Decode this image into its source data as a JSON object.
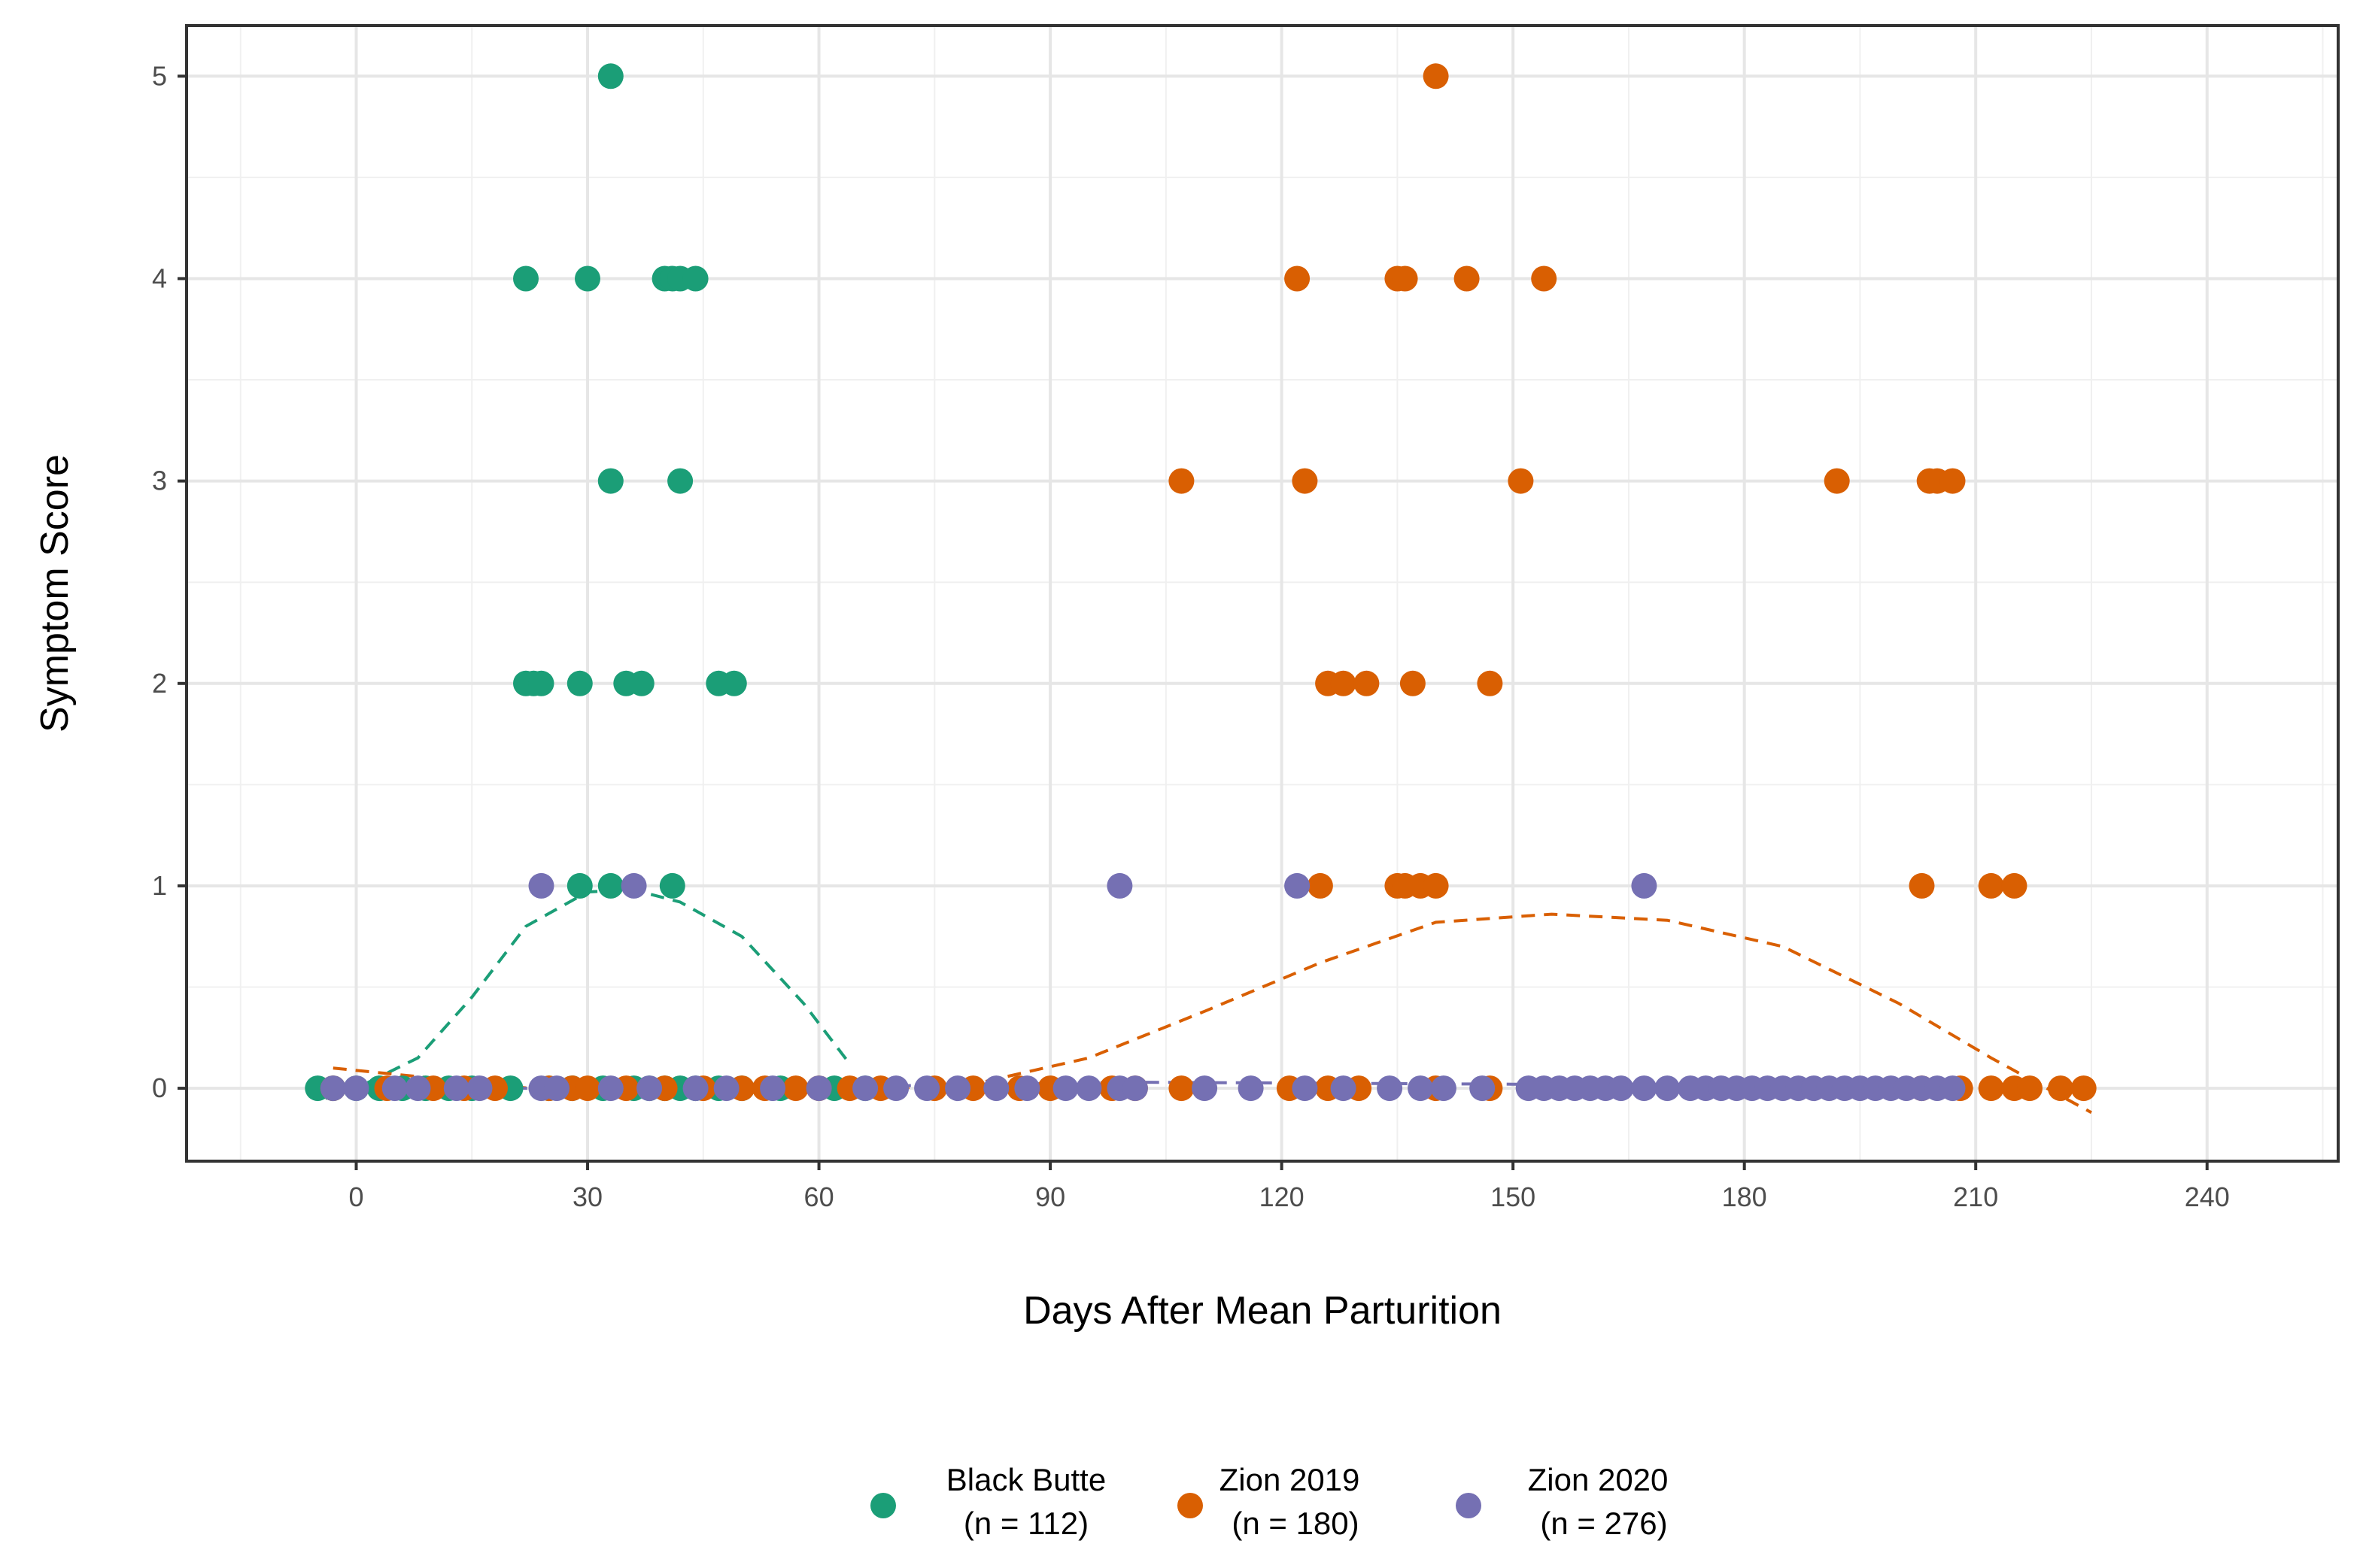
{
  "chart_data": {
    "type": "scatter",
    "title": "",
    "xlabel": "Days After Mean Parturition",
    "ylabel": "Symptom Score",
    "xlim": [
      -22,
      257
    ],
    "ylim": [
      -0.36,
      5.25
    ],
    "x_major_ticks": [
      0,
      30,
      60,
      90,
      120,
      150,
      180,
      210,
      240
    ],
    "x_tick_labels": [
      "0",
      "30",
      "60",
      "90",
      "120",
      "150",
      "180",
      "210",
      "240"
    ],
    "y_major_ticks": [
      0,
      1,
      2,
      3,
      4,
      5
    ],
    "y_tick_labels": [
      "0",
      "1",
      "2",
      "3",
      "4",
      "5"
    ],
    "x_minor_grid": [
      -15,
      15,
      45,
      75,
      105,
      135,
      165,
      195,
      225,
      255
    ],
    "y_minor_grid": [
      0.5,
      1.5,
      2.5,
      3.5,
      4.5
    ],
    "legend_position": "bottom",
    "series": [
      {
        "name": "Black Butte (n = 112)",
        "legend_line1": "Black Butte",
        "legend_line2": "(n = 112)",
        "color": "#1b9e77",
        "points": [
          [
            33,
            5
          ],
          [
            22,
            4
          ],
          [
            30,
            4
          ],
          [
            40,
            4
          ],
          [
            41,
            4
          ],
          [
            42,
            4
          ],
          [
            44,
            4
          ],
          [
            33,
            3
          ],
          [
            42,
            3
          ],
          [
            22,
            2
          ],
          [
            23,
            2
          ],
          [
            24,
            2
          ],
          [
            29,
            2
          ],
          [
            35,
            2
          ],
          [
            37,
            2
          ],
          [
            47,
            2
          ],
          [
            49,
            2
          ],
          [
            29,
            1
          ],
          [
            33,
            1
          ],
          [
            41,
            1
          ],
          [
            -5,
            0
          ],
          [
            -3,
            0
          ],
          [
            0,
            0
          ],
          [
            3,
            0
          ],
          [
            6,
            0
          ],
          [
            9,
            0
          ],
          [
            12,
            0
          ],
          [
            15,
            0
          ],
          [
            20,
            0
          ],
          [
            25,
            0
          ],
          [
            28,
            0
          ],
          [
            32,
            0
          ],
          [
            36,
            0
          ],
          [
            38,
            0
          ],
          [
            40,
            0
          ],
          [
            42,
            0
          ],
          [
            44,
            0
          ],
          [
            47,
            0
          ],
          [
            50,
            0
          ],
          [
            55,
            0
          ],
          [
            62,
            0
          ],
          [
            66,
            0
          ]
        ],
        "fit": [
          [
            -4,
            -0.05
          ],
          [
            0,
            0.0
          ],
          [
            8,
            0.15
          ],
          [
            15,
            0.45
          ],
          [
            22,
            0.8
          ],
          [
            30,
            0.97
          ],
          [
            36,
            0.98
          ],
          [
            42,
            0.92
          ],
          [
            50,
            0.75
          ],
          [
            58,
            0.42
          ],
          [
            64,
            0.12
          ]
        ]
      },
      {
        "name": "Zion 2019 (n = 180)",
        "legend_line1": "Zion 2019",
        "legend_line2": "(n = 180)",
        "color": "#d95f02",
        "points": [
          [
            140,
            5
          ],
          [
            122,
            4
          ],
          [
            135,
            4
          ],
          [
            136,
            4
          ],
          [
            144,
            4
          ],
          [
            154,
            4
          ],
          [
            107,
            3
          ],
          [
            123,
            3
          ],
          [
            151,
            3
          ],
          [
            192,
            3
          ],
          [
            204,
            3
          ],
          [
            205,
            3
          ],
          [
            207,
            3
          ],
          [
            126,
            2
          ],
          [
            128,
            2
          ],
          [
            131,
            2
          ],
          [
            137,
            2
          ],
          [
            147,
            2
          ],
          [
            125,
            1
          ],
          [
            135,
            1
          ],
          [
            136,
            1
          ],
          [
            138,
            1
          ],
          [
            140,
            1
          ],
          [
            203,
            1
          ],
          [
            212,
            1
          ],
          [
            215,
            1
          ],
          [
            -3,
            0
          ],
          [
            4,
            0
          ],
          [
            10,
            0
          ],
          [
            14,
            0
          ],
          [
            18,
            0
          ],
          [
            25,
            0
          ],
          [
            28,
            0
          ],
          [
            30,
            0
          ],
          [
            35,
            0
          ],
          [
            40,
            0
          ],
          [
            45,
            0
          ],
          [
            50,
            0
          ],
          [
            53,
            0
          ],
          [
            57,
            0
          ],
          [
            60,
            0
          ],
          [
            64,
            0
          ],
          [
            68,
            0
          ],
          [
            75,
            0
          ],
          [
            80,
            0
          ],
          [
            86,
            0
          ],
          [
            90,
            0
          ],
          [
            98,
            0
          ],
          [
            101,
            0
          ],
          [
            107,
            0
          ],
          [
            121,
            0
          ],
          [
            126,
            0
          ],
          [
            130,
            0
          ],
          [
            140,
            0
          ],
          [
            147,
            0
          ],
          [
            203,
            0
          ],
          [
            208,
            0
          ],
          [
            212,
            0
          ],
          [
            215,
            0
          ],
          [
            217,
            0
          ],
          [
            221,
            0
          ],
          [
            224,
            0
          ]
        ],
        "fit": [
          [
            -3,
            0.1
          ],
          [
            10,
            0.05
          ],
          [
            30,
            -0.03
          ],
          [
            60,
            -0.02
          ],
          [
            80,
            0.02
          ],
          [
            95,
            0.15
          ],
          [
            110,
            0.38
          ],
          [
            125,
            0.62
          ],
          [
            140,
            0.82
          ],
          [
            155,
            0.86
          ],
          [
            170,
            0.83
          ],
          [
            185,
            0.7
          ],
          [
            200,
            0.42
          ],
          [
            212,
            0.15
          ],
          [
            225,
            -0.12
          ]
        ]
      },
      {
        "name": "Zion 2020 (n = 276)",
        "legend_line1": "Zion 2020",
        "legend_line2": "(n = 276)",
        "color": "#7570b3",
        "points": [
          [
            24,
            1
          ],
          [
            36,
            1
          ],
          [
            99,
            1
          ],
          [
            122,
            1
          ],
          [
            167,
            1
          ],
          [
            -3,
            0
          ],
          [
            0,
            0
          ],
          [
            5,
            0
          ],
          [
            8,
            0
          ],
          [
            13,
            0
          ],
          [
            16,
            0
          ],
          [
            24,
            0
          ],
          [
            26,
            0
          ],
          [
            33,
            0
          ],
          [
            38,
            0
          ],
          [
            44,
            0
          ],
          [
            48,
            0
          ],
          [
            54,
            0
          ],
          [
            60,
            0
          ],
          [
            66,
            0
          ],
          [
            70,
            0
          ],
          [
            74,
            0
          ],
          [
            78,
            0
          ],
          [
            83,
            0
          ],
          [
            87,
            0
          ],
          [
            92,
            0
          ],
          [
            95,
            0
          ],
          [
            99,
            0
          ],
          [
            101,
            0
          ],
          [
            110,
            0
          ],
          [
            116,
            0
          ],
          [
            123,
            0
          ],
          [
            128,
            0
          ],
          [
            134,
            0
          ],
          [
            138,
            0
          ],
          [
            141,
            0
          ],
          [
            146,
            0
          ],
          [
            152,
            0
          ],
          [
            154,
            0
          ],
          [
            156,
            0
          ],
          [
            158,
            0
          ],
          [
            160,
            0
          ],
          [
            162,
            0
          ],
          [
            164,
            0
          ],
          [
            167,
            0
          ],
          [
            170,
            0
          ],
          [
            173,
            0
          ],
          [
            175,
            0
          ],
          [
            177,
            0
          ],
          [
            179,
            0
          ],
          [
            181,
            0
          ],
          [
            183,
            0
          ],
          [
            185,
            0
          ],
          [
            187,
            0
          ],
          [
            189,
            0
          ],
          [
            191,
            0
          ],
          [
            193,
            0
          ],
          [
            195,
            0
          ],
          [
            197,
            0
          ],
          [
            199,
            0
          ],
          [
            201,
            0
          ],
          [
            203,
            0
          ],
          [
            205,
            0
          ],
          [
            207,
            0
          ]
        ],
        "fit": [
          [
            -3,
            0.0
          ],
          [
            50,
            0.0
          ],
          [
            100,
            0.03
          ],
          [
            150,
            0.02
          ],
          [
            207,
            0.0
          ]
        ]
      }
    ]
  }
}
